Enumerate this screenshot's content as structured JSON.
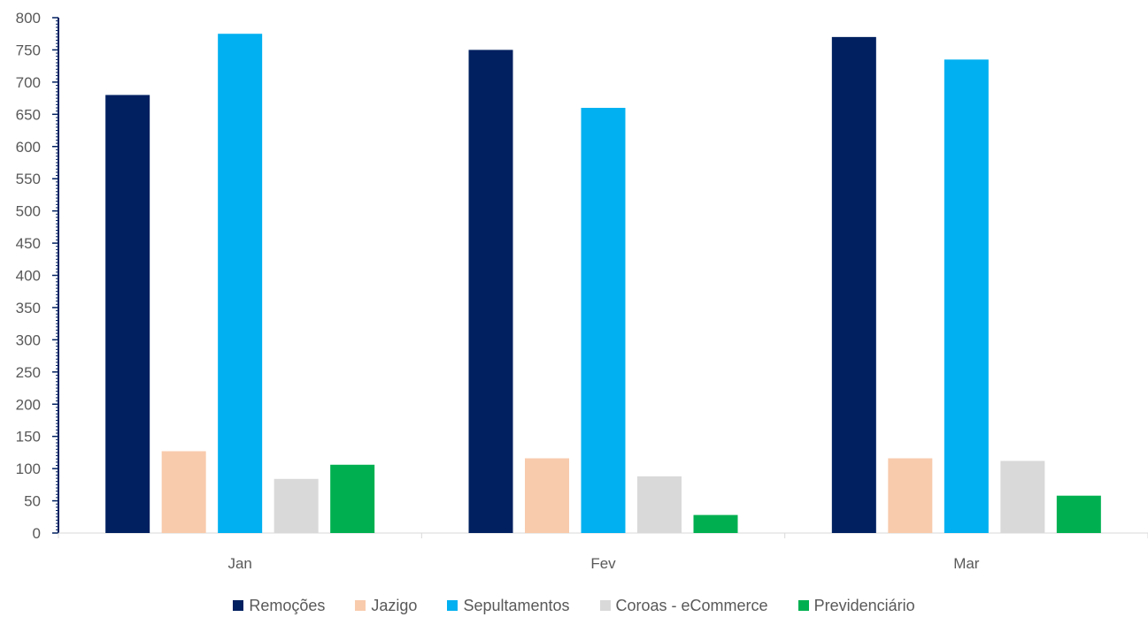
{
  "chart_data": {
    "type": "bar",
    "categories": [
      "Jan",
      "Fev",
      "Mar"
    ],
    "series": [
      {
        "name": "Remoções",
        "color": "#002060",
        "values": [
          680,
          750,
          770
        ]
      },
      {
        "name": "Jazigo",
        "color": "#F8CBAD",
        "values": [
          127,
          116,
          116
        ]
      },
      {
        "name": "Sepultamentos",
        "color": "#00B0F0",
        "values": [
          775,
          660,
          735
        ]
      },
      {
        "name": "Coroas - eCommerce",
        "color": "#D9D9D9",
        "values": [
          84,
          88,
          112
        ]
      },
      {
        "name": "Previdenciário",
        "color": "#00B050",
        "values": [
          106,
          28,
          58
        ]
      }
    ],
    "ylim": [
      0,
      800
    ],
    "yticks": [
      0,
      50,
      100,
      150,
      200,
      250,
      300,
      350,
      400,
      450,
      500,
      550,
      600,
      650,
      700,
      750,
      800
    ],
    "ytick_labels": [
      "0",
      "50",
      "100",
      "150",
      "200",
      "250",
      "300",
      "350",
      "400",
      "450",
      "500",
      "550",
      "600",
      "650",
      "700",
      "750",
      "800"
    ],
    "axis_color": "#002060",
    "grid": false,
    "legend_position": "bottom",
    "title": "",
    "xlabel": "",
    "ylabel": ""
  }
}
